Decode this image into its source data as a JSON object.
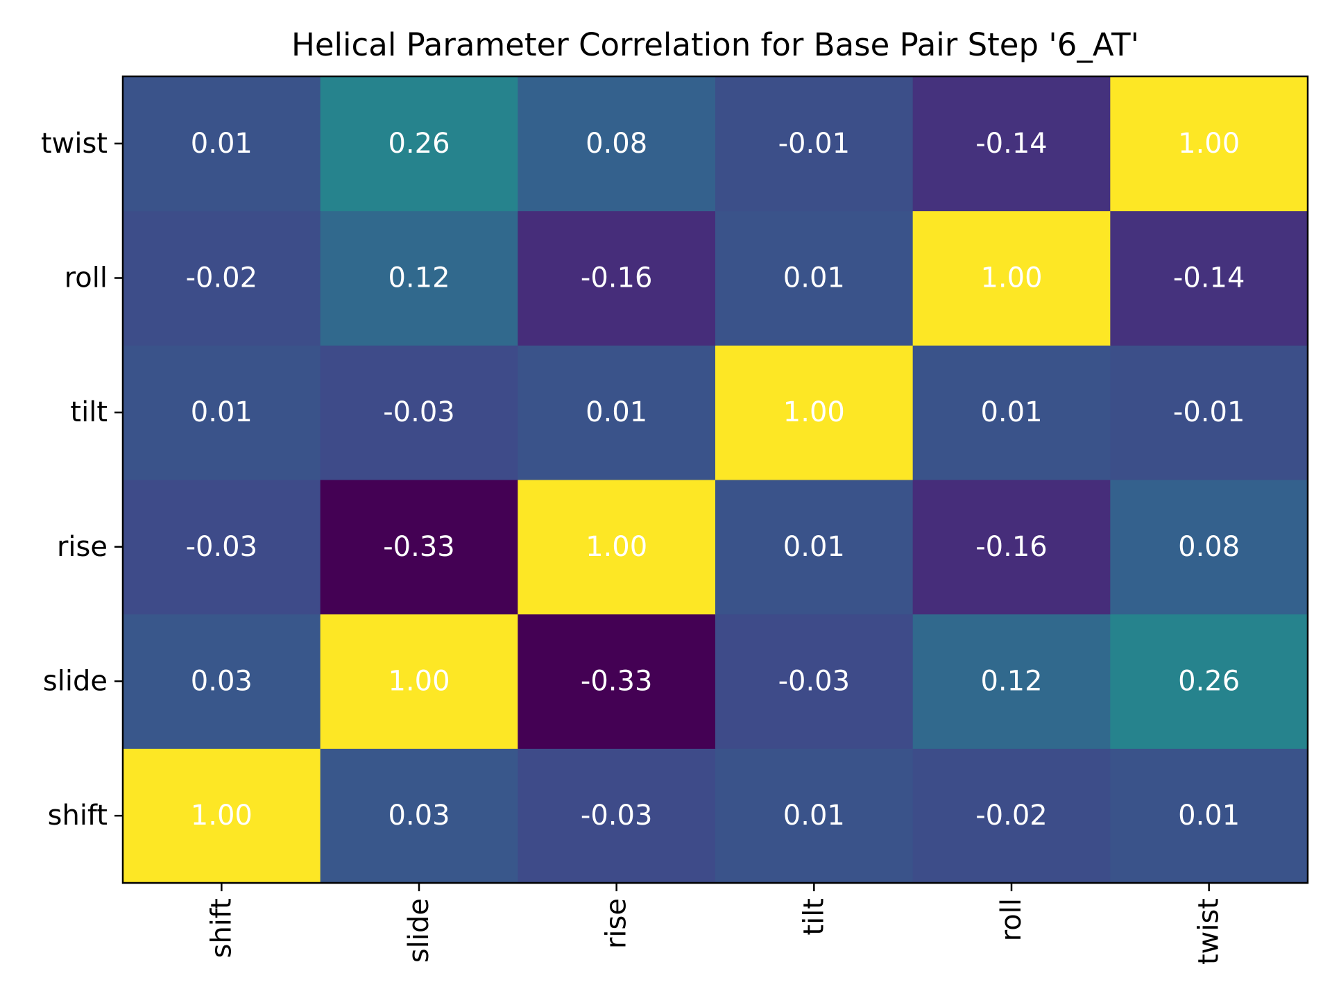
{
  "chart_data": {
    "type": "heatmap",
    "title": "Helical Parameter Correlation for Base Pair Step '6_AT'",
    "x_categories": [
      "shift",
      "slide",
      "rise",
      "tilt",
      "roll",
      "twist"
    ],
    "y_categories": [
      "shift",
      "slide",
      "rise",
      "tilt",
      "roll",
      "twist"
    ],
    "values": [
      [
        1.0,
        0.03,
        -0.03,
        0.01,
        -0.02,
        0.01
      ],
      [
        0.03,
        1.0,
        -0.33,
        -0.03,
        0.12,
        0.26
      ],
      [
        -0.03,
        -0.33,
        1.0,
        0.01,
        -0.16,
        0.08
      ],
      [
        0.01,
        -0.03,
        0.01,
        1.0,
        0.01,
        -0.01
      ],
      [
        -0.02,
        0.12,
        -0.16,
        0.01,
        1.0,
        -0.14
      ],
      [
        0.01,
        0.26,
        0.08,
        -0.01,
        -0.14,
        1.0
      ]
    ],
    "value_labels": [
      [
        "1.00",
        "0.03",
        "-0.03",
        "0.01",
        "-0.02",
        "0.01"
      ],
      [
        "0.03",
        "1.00",
        "-0.33",
        "-0.03",
        "0.12",
        "0.26"
      ],
      [
        "-0.03",
        "-0.33",
        "1.00",
        "0.01",
        "-0.16",
        "0.08"
      ],
      [
        "0.01",
        "-0.03",
        "0.01",
        "1.00",
        "0.01",
        "-0.01"
      ],
      [
        "-0.02",
        "0.12",
        "-0.16",
        "0.01",
        "1.00",
        "-0.14"
      ],
      [
        "0.01",
        "0.26",
        "0.08",
        "-0.01",
        "-0.14",
        "1.00"
      ]
    ],
    "colormap": "viridis",
    "color_range": [
      -0.33,
      1.0
    ],
    "y_order": "bottom-to-top",
    "x_tick_rotation": "vertical",
    "label_color": "#ffffff"
  }
}
